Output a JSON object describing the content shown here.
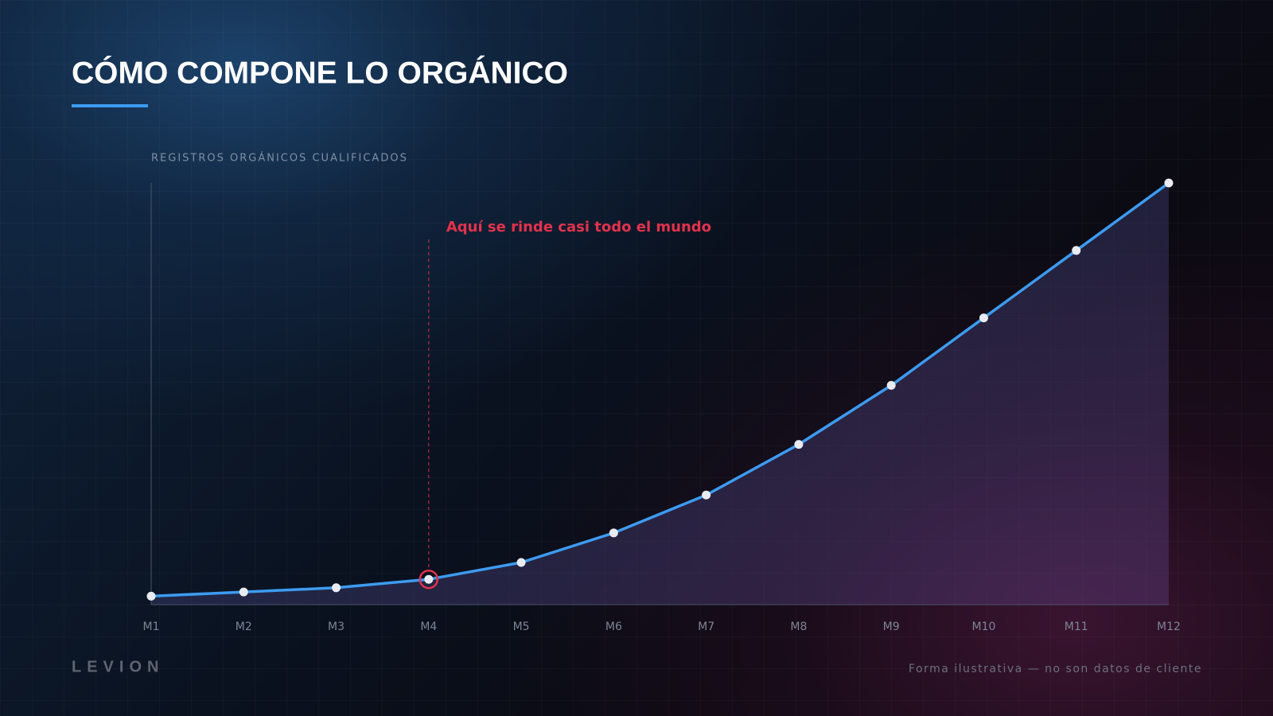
{
  "chart_data": {
    "type": "line",
    "title": "CÓMO COMPONE LO ORGÁNICO",
    "y_label": "REGISTROS ORGÁNICOS CUALIFICADOS",
    "categories": [
      "M1",
      "M2",
      "M3",
      "M4",
      "M5",
      "M6",
      "M7",
      "M8",
      "M9",
      "M10",
      "M11",
      "M12"
    ],
    "values": [
      2,
      3,
      4,
      6,
      10,
      17,
      26,
      38,
      52,
      68,
      84,
      100
    ],
    "color": "#3d9bf0",
    "ylim": [
      0,
      100
    ],
    "annotation": {
      "text": "Aquí se rinde casi todo el mundo",
      "at": "M4",
      "color": "#e3324c"
    },
    "brand": "LEVION",
    "note": "Forma ilustrativa — no son datos de cliente"
  }
}
